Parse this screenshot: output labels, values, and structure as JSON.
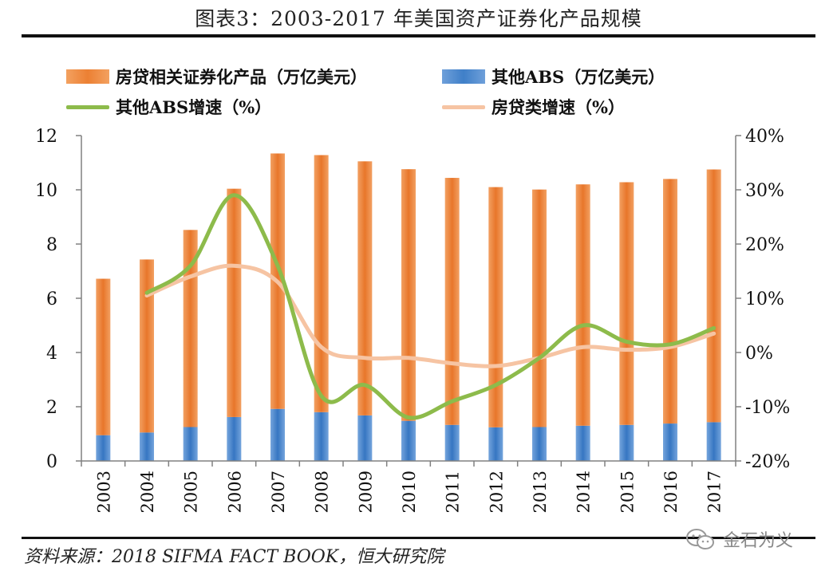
{
  "title": "图表3：2003-2017 年美国资产证券化产品规模",
  "source": "资料来源：2018 SIFMA FACT BOOK，恒大研究院",
  "watermark": "金石为义",
  "colors": {
    "mortgage_bar": "#EC8033",
    "other_abs_bar": "#3F7FC8",
    "other_abs_growth_line": "#8DBB4B",
    "mortgage_growth_line": "#F6C4A3",
    "axis": "#808080"
  },
  "legend": {
    "mortgage": "房贷相关证券化产品（万亿美元）",
    "other_abs": "其他ABS（万亿美元）",
    "other_abs_growth": "其他ABS增速（%）",
    "mortgage_growth": "房贷类增速（%）"
  },
  "chart_data": {
    "type": "bar",
    "categories": [
      "2003",
      "2004",
      "2005",
      "2006",
      "2007",
      "2008",
      "2009",
      "2010",
      "2011",
      "2012",
      "2013",
      "2014",
      "2015",
      "2016",
      "2017"
    ],
    "stacked": true,
    "series": [
      {
        "name": "其他ABS（万亿美元）",
        "type": "bar",
        "axis": "left",
        "values": [
          0.95,
          1.05,
          1.25,
          1.62,
          1.92,
          1.8,
          1.68,
          1.48,
          1.33,
          1.24,
          1.25,
          1.3,
          1.33,
          1.38,
          1.43
        ]
      },
      {
        "name": "房贷相关证券化产品（万亿美元）",
        "type": "bar",
        "axis": "left",
        "values": [
          5.77,
          6.38,
          7.27,
          8.42,
          9.42,
          9.48,
          9.37,
          9.28,
          9.11,
          8.86,
          8.76,
          8.9,
          8.95,
          9.02,
          9.32
        ]
      },
      {
        "name": "其他ABS增速（%）",
        "type": "line",
        "axis": "right",
        "values": [
          null,
          11,
          16,
          29,
          16,
          -8,
          -6,
          -12,
          -9,
          -6,
          -1,
          5,
          2,
          1.5,
          4.5
        ]
      },
      {
        "name": "房贷类增速（%）",
        "type": "line",
        "axis": "right",
        "values": [
          null,
          10.5,
          14,
          16,
          13,
          1,
          -1,
          -1,
          -2,
          -2.5,
          -1,
          1,
          0.5,
          1,
          3.5
        ]
      }
    ],
    "y_left": {
      "min": 0,
      "max": 12,
      "ticks": [
        0,
        2,
        4,
        6,
        8,
        10,
        12
      ]
    },
    "y_right": {
      "min": -20,
      "max": 40,
      "ticks": [
        "-20%",
        "-10%",
        "0%",
        "10%",
        "20%",
        "30%",
        "40%"
      ]
    },
    "legend_position": "top",
    "grid": false
  }
}
